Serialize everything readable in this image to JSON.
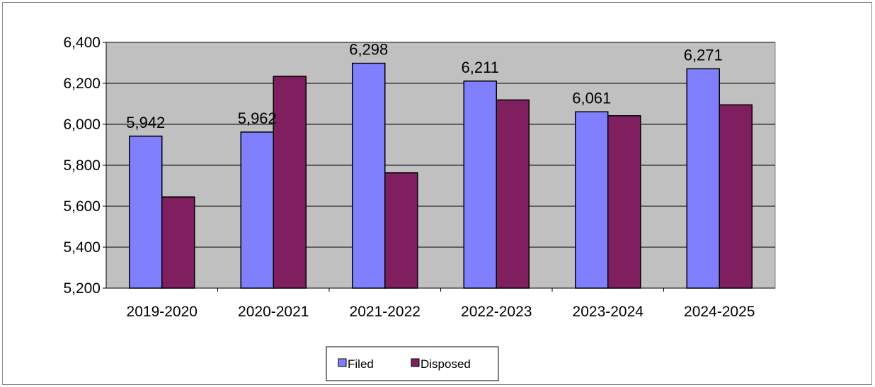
{
  "chart_data": {
    "type": "bar",
    "categories": [
      "2019-2020",
      "2020-2021",
      "2021-2022",
      "2022-2023",
      "2023-2024",
      "2024-2025"
    ],
    "series": [
      {
        "name": "Filed",
        "values": [
          5942,
          5962,
          6298,
          6211,
          6061,
          6271
        ],
        "color": "#8080FF"
      },
      {
        "name": "Disposed",
        "values": [
          5645,
          6234,
          5763,
          6119,
          6042,
          6095
        ],
        "color": "#7F1F5F"
      }
    ],
    "data_labels": [
      "5,942",
      "5,962",
      "6,298",
      "6,211",
      "6,061",
      "6,271"
    ],
    "y_ticks": [
      "5,200",
      "5,400",
      "5,600",
      "5,800",
      "6,000",
      "6,200",
      "6,400"
    ],
    "y_tick_values": [
      5200,
      5400,
      5600,
      5800,
      6000,
      6200,
      6400
    ],
    "ylim": [
      5200,
      6400
    ],
    "grid": true,
    "plot_background": "#C0C0C0",
    "legend_position": "bottom",
    "title": "",
    "xlabel": "",
    "ylabel": ""
  }
}
